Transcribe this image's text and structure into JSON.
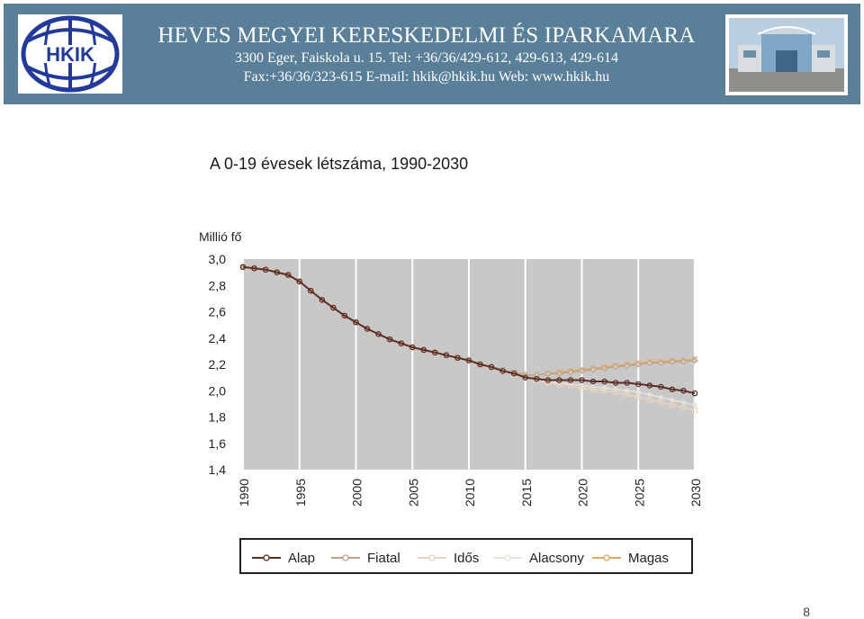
{
  "header": {
    "logo_text": "HKIK",
    "title": "HEVES MEGYEI KERESKEDELMI ÉS IPARKAMARA",
    "line2": "3300 Eger, Faiskola u. 15.   Tel: +36/36/429-612, 429-613, 429-614",
    "line3": "Fax:+36/36/323-615   E-mail: hkik@hkik.hu   Web: www.hkik.hu",
    "background_color": "#5a7f98"
  },
  "page_number": "8",
  "chart_data": {
    "type": "line",
    "title": "A 0-19 évesek létszáma, 1990-2030",
    "ylabel": "Millió fő",
    "xlabel": "",
    "ylim": [
      1.4,
      3.0
    ],
    "xlim": [
      1990,
      2030
    ],
    "yticks": [
      "1,4",
      "1,6",
      "1,8",
      "2,0",
      "2,2",
      "2,4",
      "2,6",
      "2,8",
      "3,0"
    ],
    "xticks": [
      "1990",
      "1995",
      "2000",
      "2005",
      "2010",
      "2015",
      "2020",
      "2025",
      "2030"
    ],
    "grid": "vertical",
    "plot_background": "#c8c8c8",
    "legend_position": "bottom",
    "series": [
      {
        "name": "Alap",
        "color": "#5a2e26",
        "marker": "circle",
        "x": [
          1990,
          1991,
          1992,
          1993,
          1994,
          1995,
          1996,
          1997,
          1998,
          1999,
          2000,
          2001,
          2002,
          2003,
          2004,
          2005,
          2006,
          2007,
          2008,
          2009,
          2010,
          2011,
          2012,
          2013,
          2014,
          2015,
          2016,
          2017,
          2018,
          2019,
          2020,
          2021,
          2022,
          2023,
          2024,
          2025,
          2026,
          2027,
          2028,
          2029,
          2030
        ],
        "values": [
          2.94,
          2.93,
          2.92,
          2.9,
          2.88,
          2.83,
          2.76,
          2.69,
          2.63,
          2.57,
          2.52,
          2.47,
          2.43,
          2.39,
          2.36,
          2.33,
          2.31,
          2.29,
          2.27,
          2.25,
          2.23,
          2.2,
          2.18,
          2.15,
          2.13,
          2.1,
          2.09,
          2.08,
          2.08,
          2.08,
          2.08,
          2.07,
          2.07,
          2.06,
          2.06,
          2.05,
          2.04,
          2.03,
          2.01,
          2.0,
          1.98
        ]
      },
      {
        "name": "Fiatal",
        "color": "#b8a38f",
        "marker": "diamond",
        "x": [
          1990,
          1991,
          1992,
          1993,
          1994,
          1995,
          1996,
          1997,
          1998,
          1999,
          2000,
          2001,
          2002,
          2003,
          2004,
          2005,
          2006,
          2007,
          2008,
          2009,
          2010,
          2011,
          2012,
          2013,
          2014,
          2015,
          2016,
          2017,
          2018,
          2019,
          2020,
          2021,
          2022,
          2023,
          2024,
          2025,
          2026,
          2027,
          2028,
          2029,
          2030
        ],
        "values": [
          2.94,
          2.93,
          2.92,
          2.9,
          2.88,
          2.83,
          2.76,
          2.69,
          2.63,
          2.57,
          2.52,
          2.47,
          2.43,
          2.39,
          2.36,
          2.33,
          2.31,
          2.29,
          2.27,
          2.25,
          2.23,
          2.2,
          2.18,
          2.16,
          2.14,
          2.12,
          2.12,
          2.13,
          2.13,
          2.14,
          2.15,
          2.16,
          2.17,
          2.18,
          2.19,
          2.2,
          2.21,
          2.21,
          2.22,
          2.22,
          2.23
        ]
      },
      {
        "name": "Idős",
        "color": "#e6d4c2",
        "marker": "square",
        "x": [
          1990,
          1991,
          1992,
          1993,
          1994,
          1995,
          1996,
          1997,
          1998,
          1999,
          2000,
          2001,
          2002,
          2003,
          2004,
          2005,
          2006,
          2007,
          2008,
          2009,
          2010,
          2011,
          2012,
          2013,
          2014,
          2015,
          2016,
          2017,
          2018,
          2019,
          2020,
          2021,
          2022,
          2023,
          2024,
          2025,
          2026,
          2027,
          2028,
          2029,
          2030
        ],
        "values": [
          2.94,
          2.93,
          2.92,
          2.9,
          2.88,
          2.83,
          2.76,
          2.69,
          2.63,
          2.57,
          2.52,
          2.47,
          2.43,
          2.39,
          2.36,
          2.33,
          2.31,
          2.29,
          2.27,
          2.25,
          2.23,
          2.2,
          2.18,
          2.15,
          2.12,
          2.1,
          2.08,
          2.06,
          2.05,
          2.04,
          2.02,
          2.01,
          2.0,
          1.99,
          1.97,
          1.95,
          1.93,
          1.91,
          1.89,
          1.87,
          1.85
        ]
      },
      {
        "name": "Alacsony",
        "color": "#e8e2da",
        "marker": "star",
        "x": [
          1990,
          1991,
          1992,
          1993,
          1994,
          1995,
          1996,
          1997,
          1998,
          1999,
          2000,
          2001,
          2002,
          2003,
          2004,
          2005,
          2006,
          2007,
          2008,
          2009,
          2010,
          2011,
          2012,
          2013,
          2014,
          2015,
          2016,
          2017,
          2018,
          2019,
          2020,
          2021,
          2022,
          2023,
          2024,
          2025,
          2026,
          2027,
          2028,
          2029,
          2030
        ],
        "values": [
          2.94,
          2.93,
          2.92,
          2.9,
          2.88,
          2.83,
          2.76,
          2.69,
          2.63,
          2.57,
          2.52,
          2.47,
          2.43,
          2.39,
          2.36,
          2.33,
          2.31,
          2.29,
          2.27,
          2.25,
          2.23,
          2.2,
          2.18,
          2.15,
          2.13,
          2.1,
          2.08,
          2.07,
          2.06,
          2.05,
          2.04,
          2.03,
          2.02,
          2.01,
          2.0,
          1.99,
          1.97,
          1.95,
          1.93,
          1.91,
          1.89
        ]
      },
      {
        "name": "Magas",
        "color": "#e0a868",
        "marker": "cross",
        "x": [
          1990,
          1991,
          1992,
          1993,
          1994,
          1995,
          1996,
          1997,
          1998,
          1999,
          2000,
          2001,
          2002,
          2003,
          2004,
          2005,
          2006,
          2007,
          2008,
          2009,
          2010,
          2011,
          2012,
          2013,
          2014,
          2015,
          2016,
          2017,
          2018,
          2019,
          2020,
          2021,
          2022,
          2023,
          2024,
          2025,
          2026,
          2027,
          2028,
          2029,
          2030
        ],
        "values": [
          2.94,
          2.93,
          2.92,
          2.9,
          2.88,
          2.83,
          2.76,
          2.69,
          2.63,
          2.57,
          2.52,
          2.47,
          2.43,
          2.39,
          2.36,
          2.33,
          2.31,
          2.29,
          2.27,
          2.25,
          2.23,
          2.2,
          2.18,
          2.16,
          2.14,
          2.12,
          2.12,
          2.13,
          2.14,
          2.15,
          2.16,
          2.17,
          2.18,
          2.19,
          2.2,
          2.21,
          2.22,
          2.22,
          2.23,
          2.23,
          2.24
        ]
      }
    ]
  }
}
